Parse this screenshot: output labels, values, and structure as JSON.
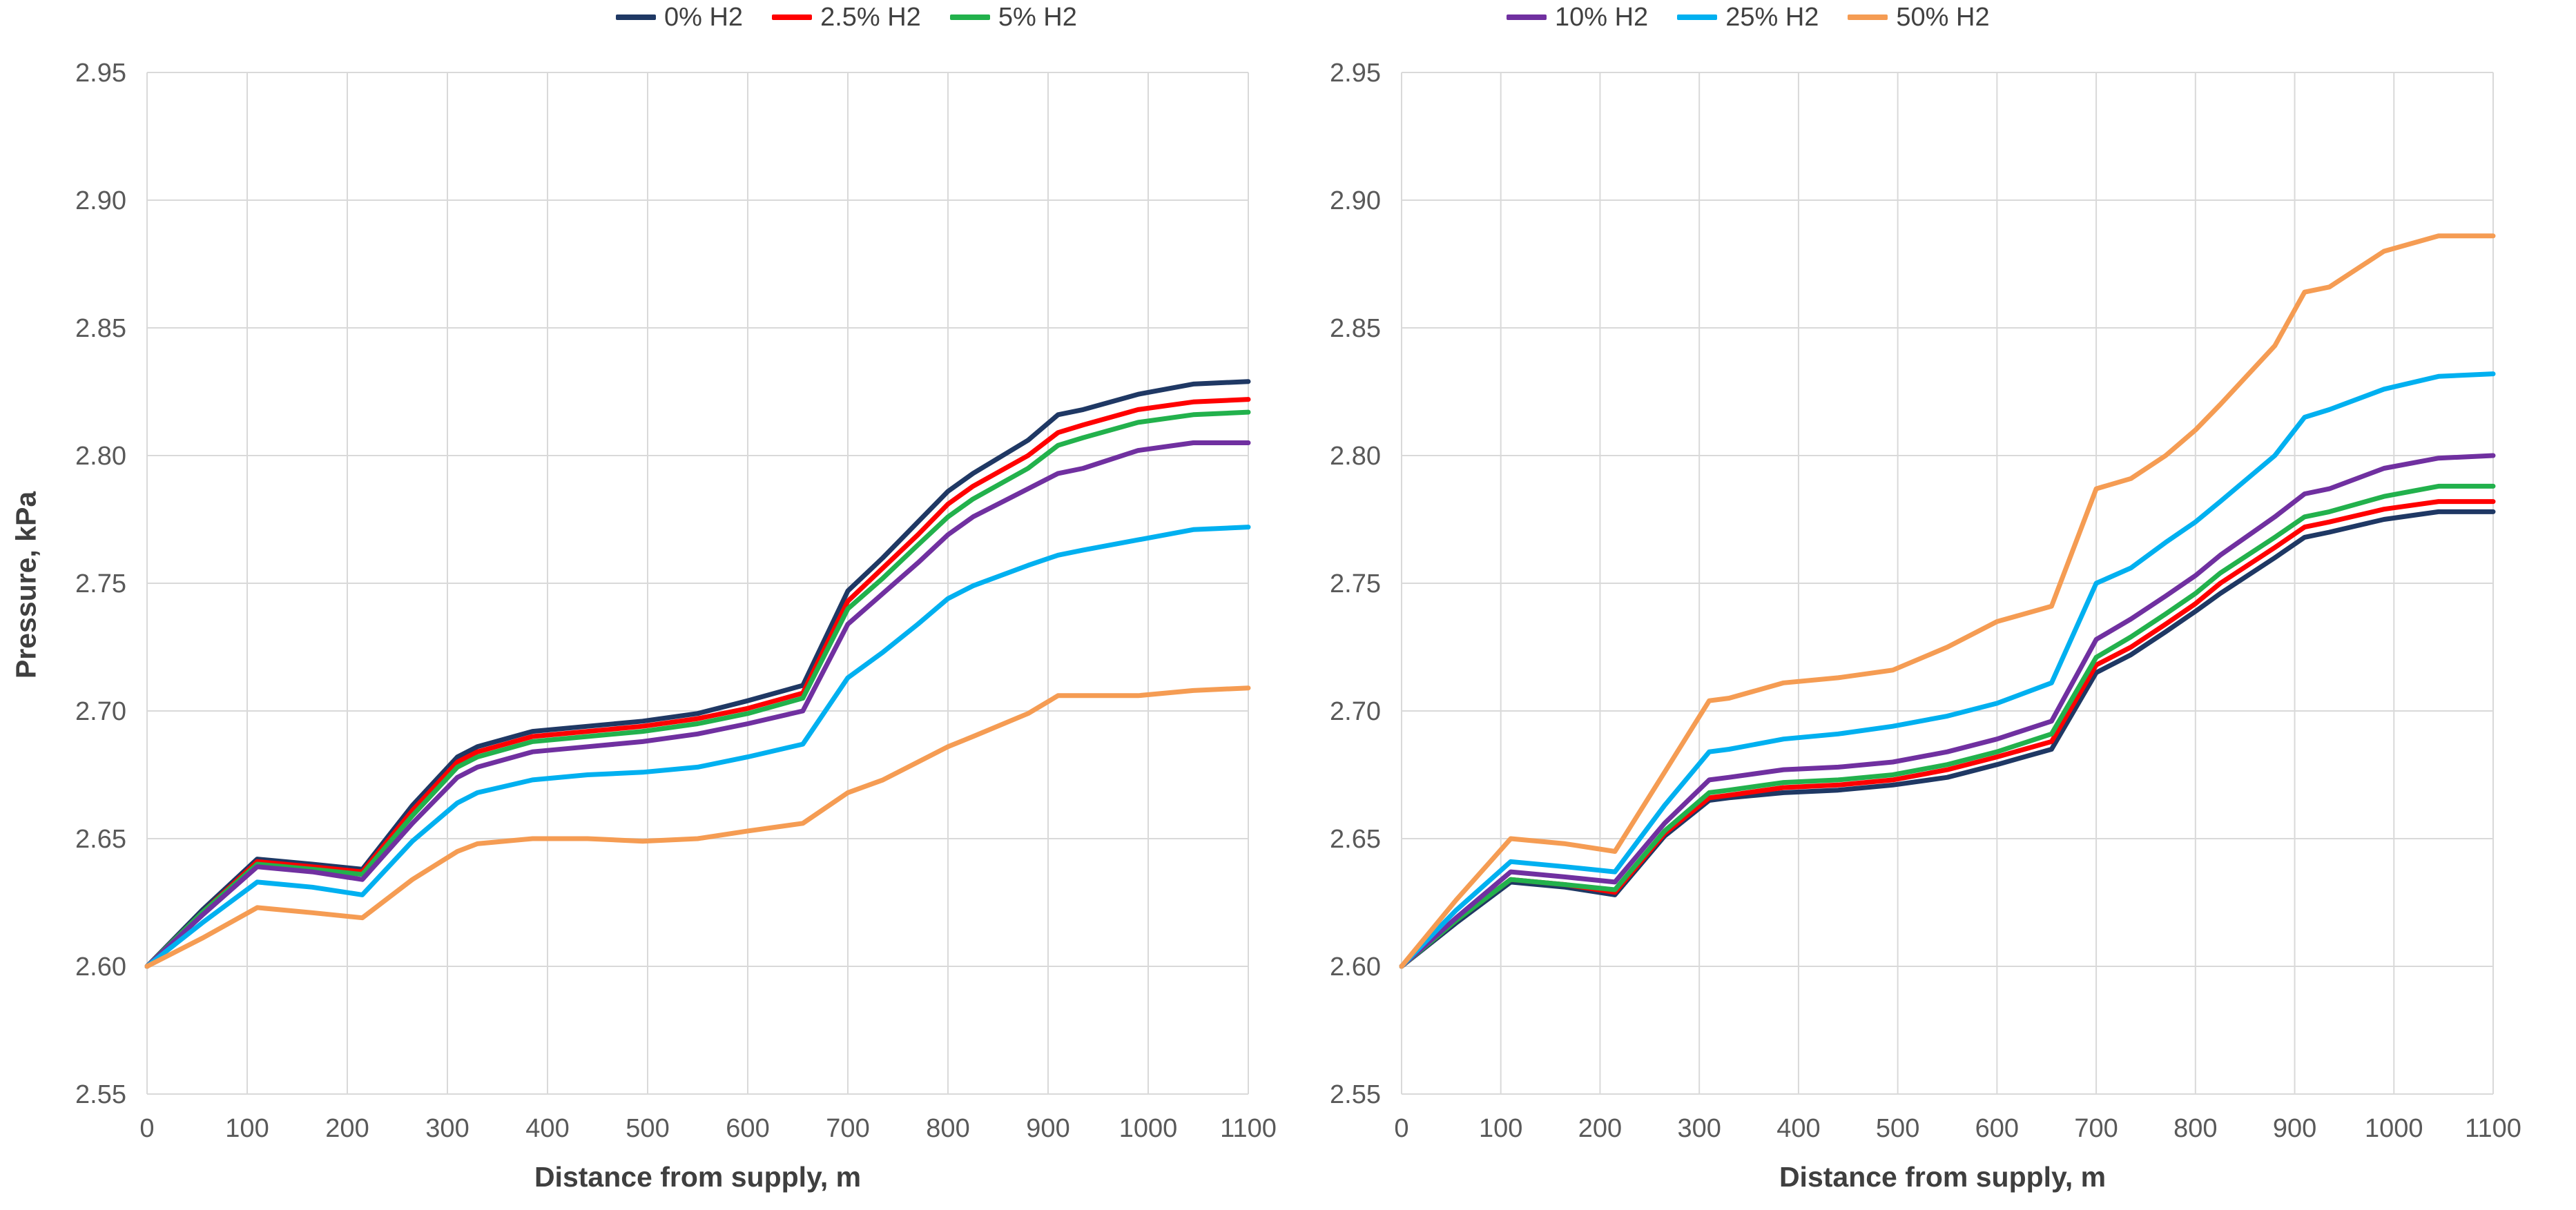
{
  "chart_data": [
    {
      "type": "line",
      "title": "",
      "xlabel": "Distance from supply, m",
      "ylabel": "Pressure, kPa",
      "xlim": [
        0,
        1100
      ],
      "ylim": [
        2.55,
        2.95
      ],
      "grid": true,
      "legend_position": "top",
      "x_tick_labels": [
        "0",
        "100",
        "200",
        "300",
        "400",
        "500",
        "600",
        "700",
        "800",
        "900",
        "1000",
        "1100"
      ],
      "x_ticks": [
        0,
        100,
        200,
        300,
        400,
        500,
        600,
        700,
        800,
        900,
        1000,
        1100
      ],
      "y_tick_labels": [
        "2.55",
        "2.60",
        "2.65",
        "2.70",
        "2.75",
        "2.80",
        "2.85",
        "2.90",
        "2.95"
      ],
      "y_ticks": [
        2.55,
        2.6,
        2.65,
        2.7,
        2.75,
        2.8,
        2.85,
        2.9,
        2.95
      ],
      "x": [
        0,
        55,
        110,
        165,
        215,
        265,
        310,
        330,
        385,
        440,
        495,
        550,
        600,
        655,
        700,
        735,
        770,
        800,
        825,
        880,
        910,
        935,
        990,
        1045,
        1100
      ],
      "series": [
        {
          "name": "0% H2",
          "color": "#1F3864",
          "values": [
            2.6,
            2.622,
            2.642,
            2.64,
            2.638,
            2.663,
            2.682,
            2.686,
            2.692,
            2.694,
            2.696,
            2.699,
            2.704,
            2.71,
            2.747,
            2.76,
            2.774,
            2.786,
            2.793,
            2.806,
            2.816,
            2.818,
            2.824,
            2.828,
            2.829
          ]
        },
        {
          "name": "2.5% H2",
          "color": "#FF0000",
          "values": [
            2.6,
            2.621,
            2.641,
            2.639,
            2.637,
            2.661,
            2.68,
            2.684,
            2.69,
            2.692,
            2.694,
            2.697,
            2.701,
            2.707,
            2.743,
            2.756,
            2.769,
            2.781,
            2.788,
            2.8,
            2.809,
            2.812,
            2.818,
            2.821,
            2.822
          ]
        },
        {
          "name": "5% H2",
          "color": "#22B14C",
          "values": [
            2.6,
            2.621,
            2.64,
            2.638,
            2.636,
            2.659,
            2.678,
            2.682,
            2.688,
            2.69,
            2.692,
            2.695,
            2.699,
            2.705,
            2.74,
            2.752,
            2.765,
            2.776,
            2.783,
            2.795,
            2.804,
            2.807,
            2.813,
            2.816,
            2.817
          ]
        },
        {
          "name": "10% H2",
          "color": "#7030A0",
          "values": [
            2.6,
            2.62,
            2.639,
            2.637,
            2.634,
            2.656,
            2.674,
            2.678,
            2.684,
            2.686,
            2.688,
            2.691,
            2.695,
            2.7,
            2.734,
            2.746,
            2.758,
            2.769,
            2.776,
            2.787,
            2.793,
            2.795,
            2.802,
            2.805,
            2.805
          ]
        },
        {
          "name": "25% H2",
          "color": "#00B0F0",
          "values": [
            2.6,
            2.617,
            2.633,
            2.631,
            2.628,
            2.649,
            2.664,
            2.668,
            2.673,
            2.675,
            2.676,
            2.678,
            2.682,
            2.687,
            2.713,
            2.723,
            2.734,
            2.744,
            2.749,
            2.757,
            2.761,
            2.763,
            2.767,
            2.771,
            2.772
          ]
        },
        {
          "name": "50% H2",
          "color": "#F59C53",
          "values": [
            2.6,
            2.611,
            2.623,
            2.621,
            2.619,
            2.634,
            2.645,
            2.648,
            2.65,
            2.65,
            2.649,
            2.65,
            2.653,
            2.656,
            2.668,
            2.673,
            2.68,
            2.686,
            2.69,
            2.699,
            2.706,
            2.706,
            2.706,
            2.708,
            2.709
          ]
        }
      ]
    },
    {
      "type": "line",
      "title": "",
      "xlabel": "Distance from supply, m",
      "ylabel": "",
      "xlim": [
        0,
        1100
      ],
      "ylim": [
        2.55,
        2.95
      ],
      "grid": true,
      "legend_position": "top",
      "x_tick_labels": [
        "0",
        "100",
        "200",
        "300",
        "400",
        "500",
        "600",
        "700",
        "800",
        "900",
        "1000",
        "1100"
      ],
      "x_ticks": [
        0,
        100,
        200,
        300,
        400,
        500,
        600,
        700,
        800,
        900,
        1000,
        1100
      ],
      "y_tick_labels": [
        "2.55",
        "2.60",
        "2.65",
        "2.70",
        "2.75",
        "2.80",
        "2.85",
        "2.90",
        "2.95"
      ],
      "y_ticks": [
        2.55,
        2.6,
        2.65,
        2.7,
        2.75,
        2.8,
        2.85,
        2.9,
        2.95
      ],
      "x": [
        0,
        55,
        110,
        165,
        215,
        265,
        310,
        330,
        385,
        440,
        495,
        550,
        600,
        655,
        700,
        735,
        770,
        800,
        825,
        880,
        910,
        935,
        990,
        1045,
        1100
      ],
      "series": [
        {
          "name": "0% H2",
          "color": "#1F3864",
          "values": [
            2.6,
            2.617,
            2.633,
            2.631,
            2.628,
            2.651,
            2.665,
            2.666,
            2.668,
            2.669,
            2.671,
            2.674,
            2.679,
            2.685,
            2.715,
            2.722,
            2.731,
            2.739,
            2.746,
            2.76,
            2.768,
            2.77,
            2.775,
            2.778,
            2.778
          ]
        },
        {
          "name": "2.5% H2",
          "color": "#FF0000",
          "values": [
            2.6,
            2.618,
            2.634,
            2.632,
            2.629,
            2.652,
            2.666,
            2.667,
            2.67,
            2.671,
            2.673,
            2.677,
            2.682,
            2.688,
            2.718,
            2.725,
            2.734,
            2.742,
            2.75,
            2.764,
            2.772,
            2.774,
            2.779,
            2.782,
            2.782
          ]
        },
        {
          "name": "5% H2",
          "color": "#22B14C",
          "values": [
            2.6,
            2.618,
            2.634,
            2.632,
            2.63,
            2.653,
            2.668,
            2.669,
            2.672,
            2.673,
            2.675,
            2.679,
            2.684,
            2.691,
            2.721,
            2.729,
            2.738,
            2.746,
            2.754,
            2.768,
            2.776,
            2.778,
            2.784,
            2.788,
            2.788
          ]
        },
        {
          "name": "10% H2",
          "color": "#7030A0",
          "values": [
            2.6,
            2.619,
            2.637,
            2.635,
            2.633,
            2.656,
            2.673,
            2.674,
            2.677,
            2.678,
            2.68,
            2.684,
            2.689,
            2.696,
            2.728,
            2.736,
            2.745,
            2.753,
            2.761,
            2.776,
            2.785,
            2.787,
            2.795,
            2.799,
            2.8
          ]
        },
        {
          "name": "25% H2",
          "color": "#00B0F0",
          "values": [
            2.6,
            2.622,
            2.641,
            2.639,
            2.637,
            2.663,
            2.684,
            2.685,
            2.689,
            2.691,
            2.694,
            2.698,
            2.703,
            2.711,
            2.75,
            2.756,
            2.766,
            2.774,
            2.782,
            2.8,
            2.815,
            2.818,
            2.826,
            2.831,
            2.832
          ]
        },
        {
          "name": "50% H2",
          "color": "#F59C53",
          "values": [
            2.6,
            2.626,
            2.65,
            2.648,
            2.645,
            2.676,
            2.704,
            2.705,
            2.711,
            2.713,
            2.716,
            2.725,
            2.735,
            2.741,
            2.787,
            2.791,
            2.8,
            2.81,
            2.82,
            2.843,
            2.864,
            2.866,
            2.88,
            2.886,
            2.886
          ]
        }
      ]
    }
  ],
  "style": {
    "gridline_color": "#D9D9D9",
    "tick_label_color": "#595959",
    "axis_title_color": "#3F3F3F",
    "series_line_width": 7
  }
}
